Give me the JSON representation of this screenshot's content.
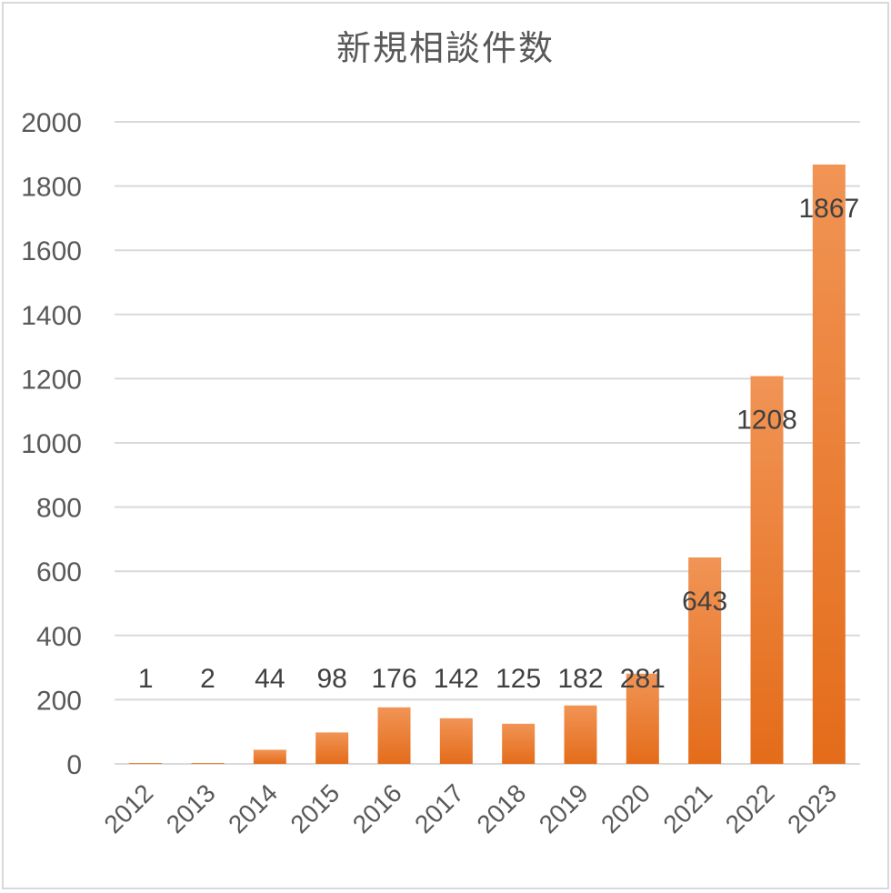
{
  "chart_data": {
    "type": "bar",
    "title": "新規相談件数",
    "xlabel": "",
    "ylabel": "",
    "categories": [
      "2012",
      "2013",
      "2014",
      "2015",
      "2016",
      "2017",
      "2018",
      "2019",
      "2020",
      "2021",
      "2022",
      "2023"
    ],
    "values": [
      1,
      2,
      44,
      98,
      176,
      142,
      125,
      182,
      281,
      643,
      1208,
      1867
    ],
    "ylim": [
      0,
      2000
    ],
    "yticks": [
      0,
      200,
      400,
      600,
      800,
      1000,
      1200,
      1400,
      1600,
      1800,
      2000
    ],
    "grid": true,
    "legend": "none",
    "bar_color": "#ed7d31",
    "bar_color_light": "#f19455",
    "bar_color_dark": "#e46c1a"
  }
}
